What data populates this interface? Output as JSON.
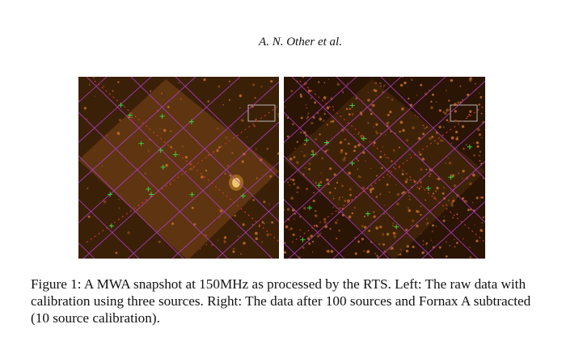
{
  "header": {
    "running_title": "A. N. Other et al."
  },
  "figure": {
    "caption": "Figure 1: A MWA snapshot at 150MHz as processed by the RTS. Left: The raw data with calibration using three sources. Right: The data after 100 sources and Fornax A subtracted (10 source calibration)."
  }
}
